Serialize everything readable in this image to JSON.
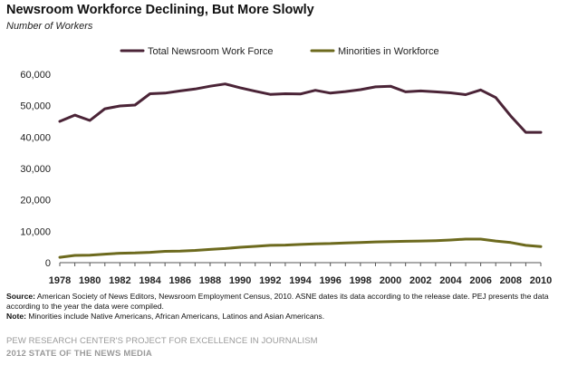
{
  "title": "Newsroom Workforce Declining, But More Slowly",
  "subtitle": "Number of Workers",
  "chart_data": {
    "type": "line",
    "title": "Newsroom Workforce Declining, But More Slowly",
    "ylabel": "Number of Workers",
    "xlabel": "",
    "ylim": [
      0,
      60000
    ],
    "yticks": [
      0,
      10000,
      20000,
      30000,
      40000,
      50000,
      60000
    ],
    "ytick_labels": [
      "0",
      "10,000",
      "20,000",
      "30,000",
      "40,000",
      "50,000",
      "60,000"
    ],
    "xlim": [
      1978,
      2010
    ],
    "xtick_labels": [
      "1978",
      "1980",
      "1982",
      "1984",
      "1986",
      "1988",
      "1990",
      "1992",
      "1994",
      "1996",
      "1998",
      "2000",
      "2002",
      "2004",
      "2006",
      "2008",
      "2010"
    ],
    "grid": false,
    "legend_position": "top",
    "x": [
      1978,
      1979,
      1980,
      1981,
      1982,
      1983,
      1984,
      1985,
      1986,
      1987,
      1988,
      1989,
      1990,
      1991,
      1992,
      1993,
      1994,
      1995,
      1996,
      1997,
      1998,
      1999,
      2000,
      2001,
      2002,
      2003,
      2004,
      2005,
      2006,
      2007,
      2008,
      2009,
      2010
    ],
    "series": [
      {
        "name": "Total Newsroom Work Force",
        "color": "#4b2437",
        "values": [
          45000,
          47000,
          45300,
          49000,
          49900,
          50200,
          53800,
          54000,
          54700,
          55300,
          56200,
          56900,
          55700,
          54600,
          53600,
          53800,
          53700,
          54900,
          54000,
          54500,
          55100,
          56000,
          56200,
          54400,
          54700,
          54400,
          54100,
          53500,
          55000,
          52600,
          46700,
          41500,
          41500
        ]
      },
      {
        "name": "Minorities in Workforce",
        "color": "#6d6a1e",
        "values": [
          1700,
          2300,
          2400,
          2700,
          3000,
          3100,
          3300,
          3600,
          3700,
          3900,
          4200,
          4500,
          4900,
          5200,
          5500,
          5600,
          5800,
          6000,
          6100,
          6300,
          6400,
          6600,
          6700,
          6800,
          6900,
          7000,
          7200,
          7500,
          7500,
          6900,
          6400,
          5500,
          5100
        ]
      }
    ]
  },
  "notes": {
    "source_label": "Source:",
    "source_text": "American Society of News Editors, Newsroom Employment Census, 2010. ASNE dates its data according to the release date. PEJ presents the data according to the year the data were compiled.",
    "note_label": "Note:",
    "note_text": "Minorities include Native Americans, African Americans, Latinos and Asian Americans."
  },
  "footer": {
    "line1": "PEW RESEARCH CENTER'S PROJECT FOR EXCELLENCE IN JOURNALISM",
    "line2": "2012 STATE OF THE NEWS MEDIA"
  }
}
